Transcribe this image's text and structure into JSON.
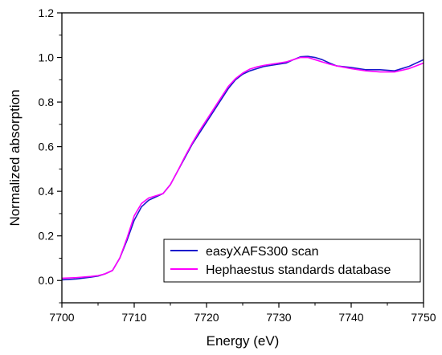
{
  "chart_data": {
    "type": "line",
    "title": "",
    "xlabel": "Energy (eV)",
    "ylabel": "Normalized absorption",
    "xlim": [
      7700,
      7750
    ],
    "ylim": [
      -0.1,
      1.2
    ],
    "x_ticks": [
      7700,
      7710,
      7720,
      7730,
      7740,
      7750
    ],
    "x_tick_labels": [
      "7700",
      "7710",
      "7720",
      "7730",
      "7740",
      "7750"
    ],
    "y_ticks": [
      0.0,
      0.2,
      0.4,
      0.6,
      0.8,
      1.0,
      1.2
    ],
    "y_tick_labels": [
      "0.0",
      "0.2",
      "0.4",
      "0.6",
      "0.8",
      "1.0",
      "1.2"
    ],
    "grid": false,
    "legend_position": "bottom-right",
    "series": [
      {
        "name": "easyXAFS300 scan",
        "color": "#1a1acc",
        "x": [
          7700,
          7702,
          7704,
          7705,
          7706,
          7707,
          7708,
          7709,
          7710,
          7711,
          7712,
          7713,
          7714,
          7715,
          7716,
          7717,
          7718,
          7719,
          7720,
          7721,
          7722,
          7723,
          7724,
          7725,
          7726,
          7727,
          7728,
          7729,
          7730,
          7731,
          7732,
          7733,
          7734,
          7735,
          7736,
          7737,
          7738,
          7740,
          7742,
          7744,
          7746,
          7748,
          7750
        ],
        "y": [
          0.003,
          0.007,
          0.015,
          0.02,
          0.03,
          0.045,
          0.1,
          0.18,
          0.27,
          0.33,
          0.36,
          0.375,
          0.39,
          0.43,
          0.49,
          0.55,
          0.61,
          0.66,
          0.71,
          0.76,
          0.81,
          0.86,
          0.9,
          0.925,
          0.94,
          0.95,
          0.96,
          0.965,
          0.97,
          0.975,
          0.99,
          1.003,
          1.005,
          1.0,
          0.99,
          0.975,
          0.962,
          0.955,
          0.945,
          0.945,
          0.94,
          0.96,
          0.99
        ]
      },
      {
        "name": "Hephaestus standards database",
        "color": "#ff00ff",
        "x": [
          7700,
          7702,
          7704,
          7705,
          7706,
          7707,
          7708,
          7709,
          7710,
          7711,
          7712,
          7713,
          7714,
          7715,
          7716,
          7717,
          7718,
          7719,
          7720,
          7721,
          7722,
          7723,
          7724,
          7725,
          7726,
          7727,
          7728,
          7729,
          7730,
          7731,
          7732,
          7733,
          7734,
          7735,
          7736,
          7737,
          7738,
          7740,
          7742,
          7744,
          7746,
          7748,
          7750
        ],
        "y": [
          0.01,
          0.013,
          0.018,
          0.022,
          0.03,
          0.045,
          0.1,
          0.19,
          0.29,
          0.345,
          0.37,
          0.38,
          0.39,
          0.43,
          0.49,
          0.555,
          0.615,
          0.67,
          0.72,
          0.77,
          0.82,
          0.87,
          0.905,
          0.93,
          0.948,
          0.958,
          0.965,
          0.97,
          0.975,
          0.98,
          0.99,
          1.0,
          1.0,
          0.99,
          0.98,
          0.97,
          0.962,
          0.95,
          0.94,
          0.935,
          0.935,
          0.95,
          0.975
        ]
      }
    ]
  }
}
